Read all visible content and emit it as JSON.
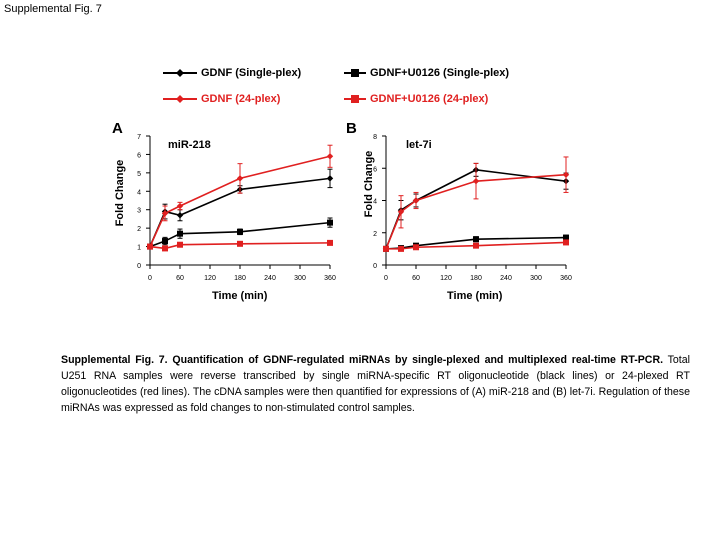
{
  "page": {
    "title": "Supplemental Fig. 7"
  },
  "legend": [
    {
      "label": "GDNF (Single-plex)",
      "color": "#000000",
      "marker": "diamond"
    },
    {
      "label": "GDNF+U0126 (Single-plex)",
      "color": "#000000",
      "marker": "square"
    },
    {
      "label": "GDNF (24-plex)",
      "color": "#e02020",
      "marker": "diamond"
    },
    {
      "label": "GDNF+U0126 (24-plex)",
      "color": "#e02020",
      "marker": "square"
    }
  ],
  "chart_data": [
    {
      "type": "line",
      "panel": "A",
      "title": "miR-218",
      "xlabel": "Time (min)",
      "ylabel": "Fold Change",
      "xlim": [
        0,
        360
      ],
      "ylim": [
        0,
        7
      ],
      "xticks": [
        0,
        60,
        120,
        180,
        240,
        300,
        360
      ],
      "yticks": [
        0,
        1,
        2,
        3,
        4,
        5,
        6,
        7
      ],
      "x": [
        0,
        30,
        60,
        180,
        360
      ],
      "series": [
        {
          "name": "GDNF (Single-plex)",
          "color": "#000000",
          "marker": "diamond",
          "values": [
            1.0,
            2.9,
            2.7,
            4.1,
            4.7
          ],
          "errors": [
            0.1,
            0.4,
            0.3,
            0.2,
            0.5
          ]
        },
        {
          "name": "GDNF+U0126 (Single-plex)",
          "color": "#000000",
          "marker": "square",
          "values": [
            1.0,
            1.3,
            1.7,
            1.8,
            2.3
          ],
          "errors": [
            0.1,
            0.2,
            0.25,
            0.15,
            0.25
          ]
        },
        {
          "name": "GDNF (24-plex)",
          "color": "#e02020",
          "marker": "diamond",
          "values": [
            1.0,
            2.8,
            3.2,
            4.7,
            5.9
          ],
          "errors": [
            0.1,
            0.4,
            0.2,
            0.8,
            0.6
          ]
        },
        {
          "name": "GDNF+U0126 (24-plex)",
          "color": "#e02020",
          "marker": "square",
          "values": [
            1.0,
            0.9,
            1.1,
            1.15,
            1.2
          ],
          "errors": [
            0.05,
            0.1,
            0.05,
            0.05,
            0.05
          ]
        }
      ]
    },
    {
      "type": "line",
      "panel": "B",
      "title": "let-7i",
      "xlabel": "Time (min)",
      "ylabel": "Fold Change",
      "xlim": [
        0,
        360
      ],
      "ylim": [
        0,
        8
      ],
      "xticks": [
        0,
        60,
        120,
        180,
        240,
        300,
        360
      ],
      "yticks": [
        0,
        2,
        4,
        6,
        8
      ],
      "x": [
        0,
        30,
        60,
        180,
        360
      ],
      "series": [
        {
          "name": "GDNF (Single-plex)",
          "color": "#000000",
          "marker": "diamond",
          "values": [
            1.0,
            3.4,
            4.0,
            5.9,
            5.2
          ],
          "errors": [
            0.1,
            0.6,
            0.4,
            0.4,
            0.5
          ]
        },
        {
          "name": "GDNF+U0126 (Single-plex)",
          "color": "#000000",
          "marker": "square",
          "values": [
            1.0,
            1.05,
            1.2,
            1.6,
            1.7
          ],
          "errors": [
            0.1,
            0.1,
            0.1,
            0.15,
            0.15
          ]
        },
        {
          "name": "GDNF (24-plex)",
          "color": "#e02020",
          "marker": "diamond",
          "values": [
            1.0,
            3.3,
            4.0,
            5.2,
            5.6
          ],
          "errors": [
            0.1,
            1.0,
            0.5,
            1.1,
            1.1
          ]
        },
        {
          "name": "GDNF+U0126 (24-plex)",
          "color": "#e02020",
          "marker": "square",
          "values": [
            1.0,
            1.0,
            1.1,
            1.2,
            1.4
          ],
          "errors": [
            0.05,
            0.05,
            0.05,
            0.05,
            0.1
          ]
        }
      ]
    }
  ],
  "caption": {
    "bold": "Supplemental Fig. 7. Quantification of GDNF-regulated miRNAs by single-plexed and multiplexed real-time RT-PCR.",
    "text": " Total U251 RNA samples were reverse transcribed by single miRNA-specific RT oligonucleotide (black lines) or 24-plexed RT oligonucleotides (red lines). The cDNA samples were then quantified for expressions of (A) miR-218 and (B) let-7i. Regulation of these miRNAs was expressed as fold changes to non-stimulated control samples."
  }
}
